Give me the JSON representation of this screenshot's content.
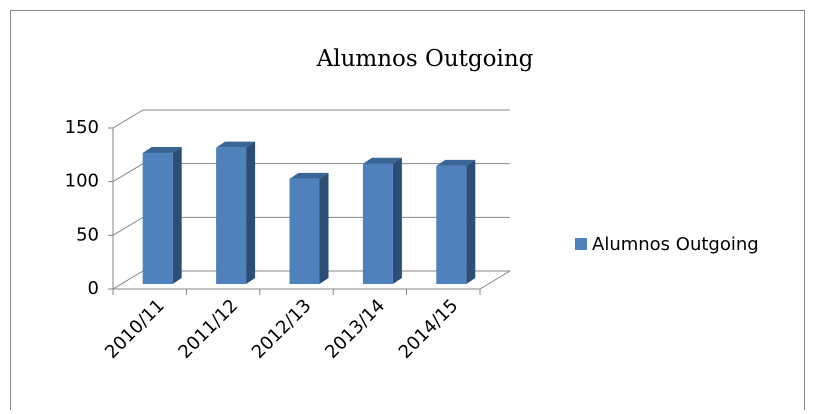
{
  "chart_data": {
    "type": "bar3d",
    "title": "Alumnos Outgoing",
    "categories": [
      "2010/11",
      "2011/12",
      "2012/13",
      "2013/14",
      "2014/15"
    ],
    "series": [
      {
        "name": "Alumnos Outgoing",
        "color": "#4f81bd",
        "values": [
          122,
          127,
          98,
          112,
          110
        ]
      }
    ],
    "ylim": [
      0,
      150
    ],
    "yticks": [
      0,
      50,
      100,
      150
    ],
    "grid": true,
    "legend": "right"
  }
}
